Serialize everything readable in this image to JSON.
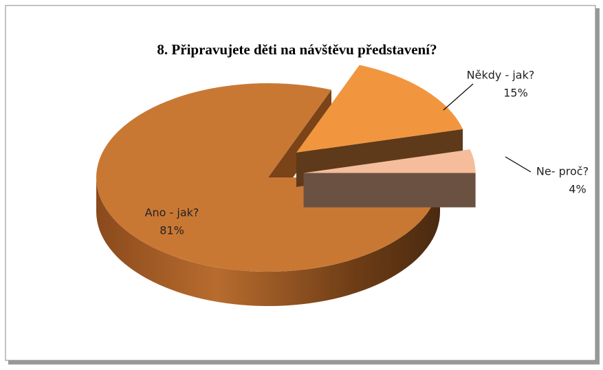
{
  "chart_data": {
    "type": "pie",
    "title": "8. Připravujete děti na návštěvu představení?",
    "categories": [
      "Ano - jak?",
      "Někdy - jak?",
      "Ne- proč?"
    ],
    "values": [
      81,
      15,
      4
    ],
    "value_labels": [
      "81%",
      "15%",
      "4%"
    ],
    "colors": [
      "#c97834",
      "#f1963f",
      "#f5bd9b"
    ]
  }
}
